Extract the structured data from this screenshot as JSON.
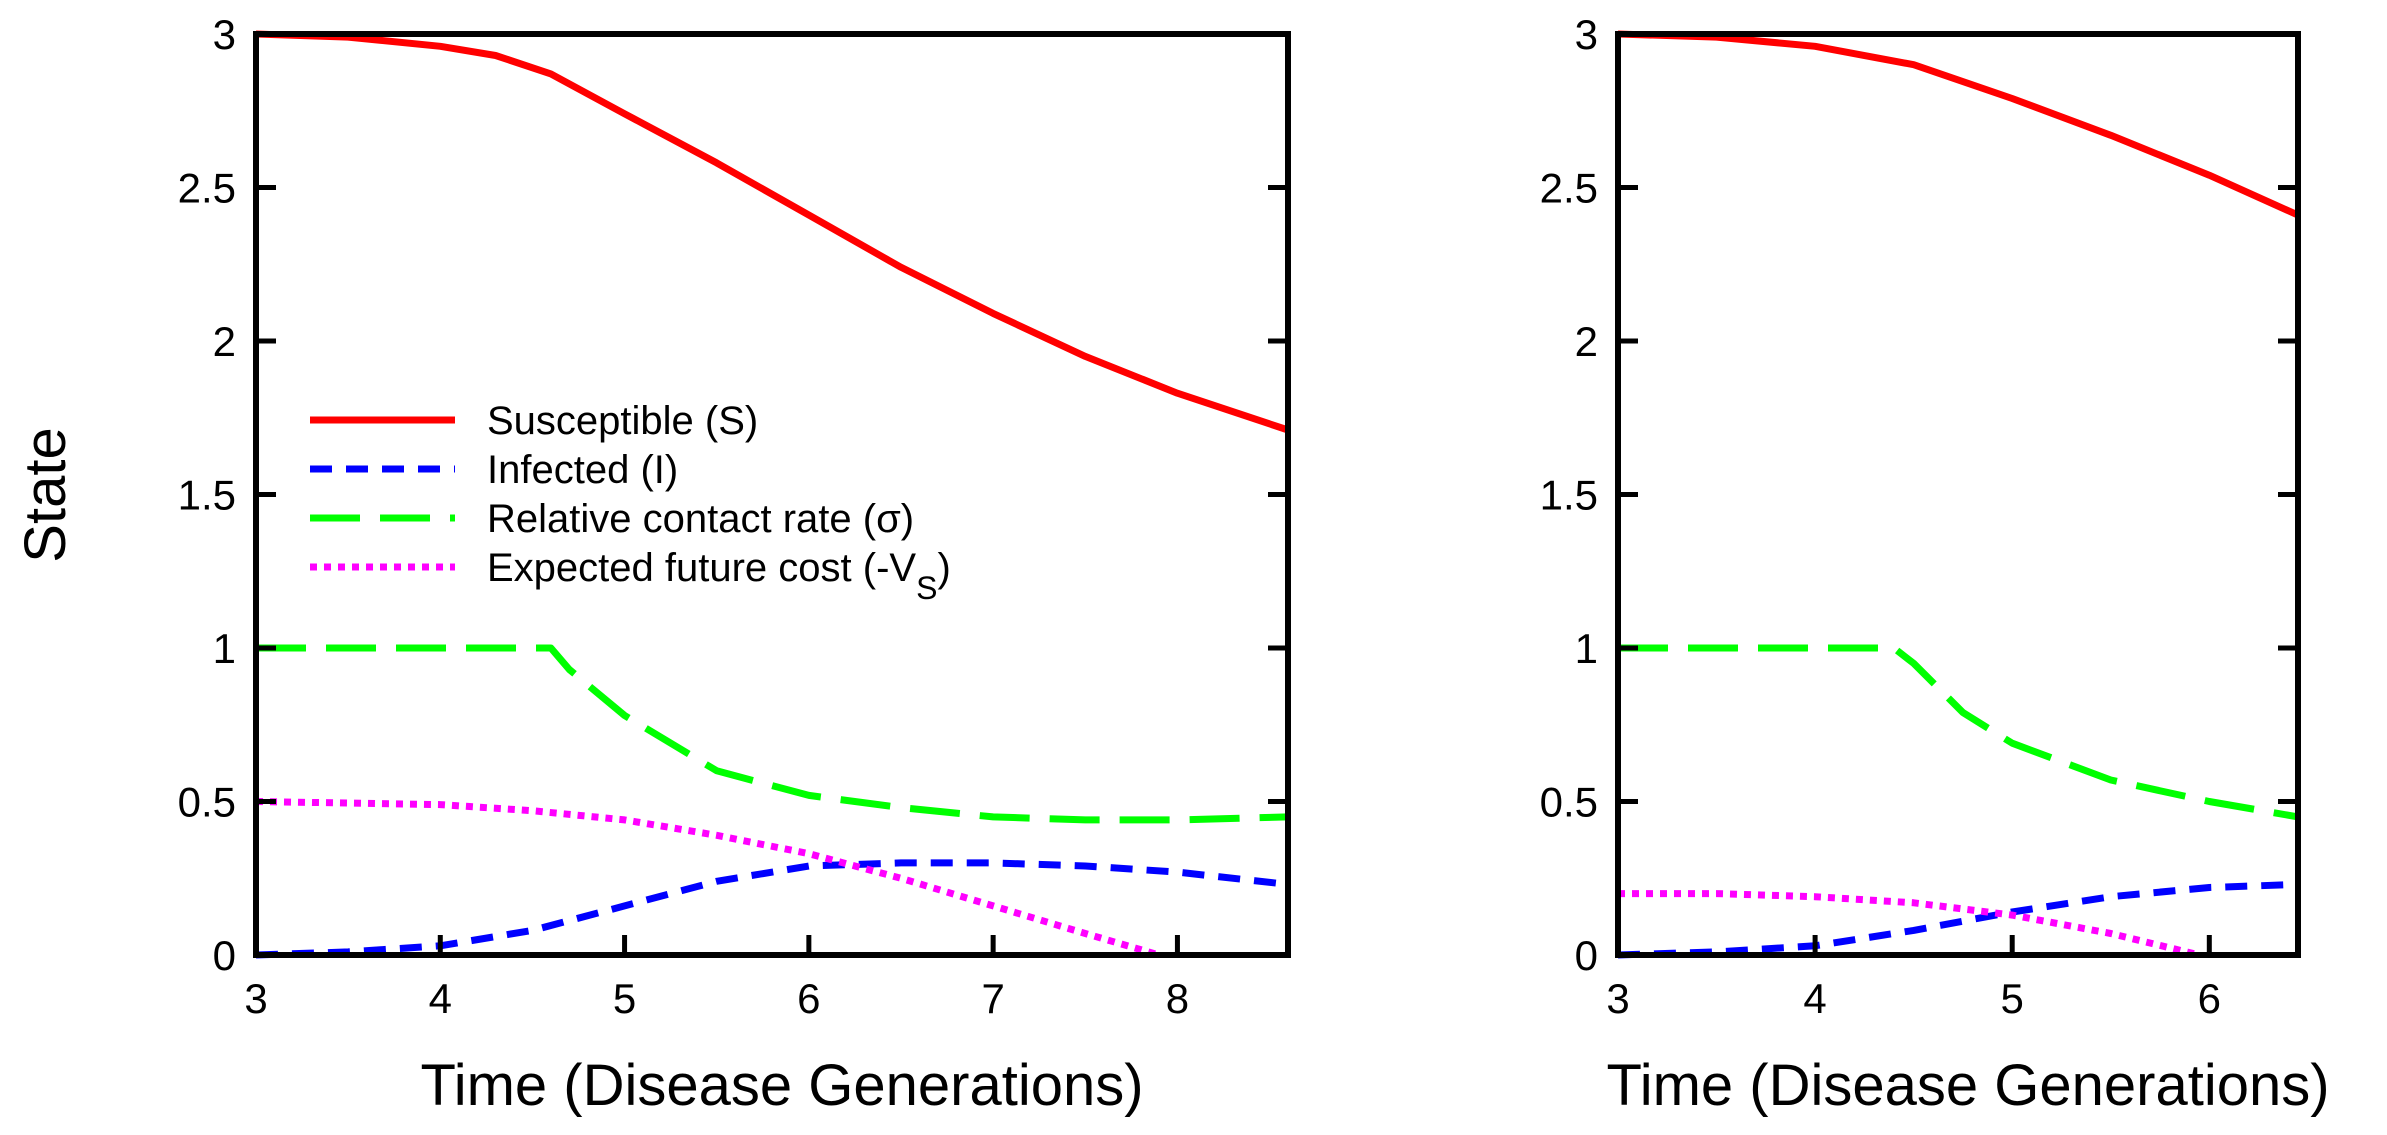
{
  "figure": {
    "ylabel": "State",
    "xlabel": "Time (Disease Generations)"
  },
  "legend": {
    "position": "left-center of first panel",
    "entries": [
      {
        "key": "S",
        "label": "Susceptible (S)",
        "color": "#ff0000",
        "style": "solid"
      },
      {
        "key": "I",
        "label": "Infected (I)",
        "color": "#0000ff",
        "style": "short-dash"
      },
      {
        "key": "sigma",
        "label": "Relative contact rate (σ)",
        "color": "#00ff00",
        "style": "long-dash"
      },
      {
        "key": "VS",
        "label": "Expected future cost (-V",
        "sub": "S",
        "close": ")",
        "color": "#ff00ff",
        "style": "dotted"
      }
    ]
  },
  "chart_data": [
    {
      "type": "line",
      "xlabel": "Time (Disease Generations)",
      "ylabel": "State",
      "xlim": [
        3,
        8.6
      ],
      "ylim": [
        0,
        3
      ],
      "xticks": [
        3,
        4,
        5,
        6,
        7,
        8
      ],
      "yticks": [
        0,
        0.5,
        1,
        1.5,
        2,
        2.5,
        3
      ],
      "ytick_labels": [
        "0",
        "0.5",
        "1",
        "1.5",
        "2",
        "2.5",
        "3"
      ],
      "series": [
        {
          "name": "Susceptible (S)",
          "key": "S",
          "x": [
            3,
            3.5,
            4,
            4.3,
            4.6,
            5,
            5.5,
            6,
            6.5,
            7,
            7.5,
            8,
            8.6
          ],
          "y": [
            3.0,
            2.99,
            2.96,
            2.93,
            2.87,
            2.74,
            2.58,
            2.41,
            2.24,
            2.09,
            1.95,
            1.83,
            1.71
          ]
        },
        {
          "name": "Infected (I)",
          "key": "I",
          "x": [
            3,
            3.5,
            4,
            4.5,
            5,
            5.5,
            6,
            6.5,
            7,
            7.5,
            8,
            8.6
          ],
          "y": [
            0.0,
            0.01,
            0.03,
            0.08,
            0.16,
            0.24,
            0.29,
            0.3,
            0.3,
            0.29,
            0.27,
            0.23
          ]
        },
        {
          "name": "Relative contact rate (σ)",
          "key": "sigma",
          "x": [
            3,
            4.6,
            4.7,
            5,
            5.5,
            6,
            6.5,
            7,
            7.5,
            8,
            8.6
          ],
          "y": [
            1.0,
            1.0,
            0.93,
            0.78,
            0.6,
            0.52,
            0.48,
            0.45,
            0.44,
            0.44,
            0.45
          ]
        },
        {
          "name": "Expected future cost (-VS)",
          "key": "VS",
          "x": [
            3,
            4,
            4.5,
            5,
            5.5,
            6,
            6.5,
            7,
            7.5,
            7.9
          ],
          "y": [
            0.5,
            0.49,
            0.47,
            0.44,
            0.39,
            0.33,
            0.25,
            0.16,
            0.07,
            0.0
          ]
        }
      ]
    },
    {
      "type": "line",
      "xlabel": "Time (Disease Generations)",
      "ylabel": "",
      "xlim": [
        3,
        6.45
      ],
      "ylim": [
        0,
        3
      ],
      "xticks": [
        3,
        4,
        5,
        6
      ],
      "yticks": [
        0,
        0.5,
        1,
        1.5,
        2,
        2.5,
        3
      ],
      "ytick_labels": [
        "0",
        "0.5",
        "1",
        "1.5",
        "2",
        "2.5",
        "3"
      ],
      "series": [
        {
          "name": "Susceptible (S)",
          "key": "S",
          "x": [
            3,
            3.5,
            4,
            4.5,
            5,
            5.5,
            6,
            6.45
          ],
          "y": [
            3.0,
            2.99,
            2.96,
            2.9,
            2.79,
            2.67,
            2.54,
            2.41
          ]
        },
        {
          "name": "Infected (I)",
          "key": "I",
          "x": [
            3,
            3.5,
            4,
            4.5,
            5,
            5.5,
            6,
            6.45
          ],
          "y": [
            0.0,
            0.01,
            0.03,
            0.08,
            0.14,
            0.19,
            0.22,
            0.23
          ]
        },
        {
          "name": "Relative contact rate (σ)",
          "key": "sigma",
          "x": [
            3,
            4.4,
            4.5,
            4.75,
            5,
            5.5,
            6,
            6.45
          ],
          "y": [
            1.0,
            1.0,
            0.95,
            0.79,
            0.69,
            0.57,
            0.5,
            0.45
          ]
        },
        {
          "name": "Expected future cost (-VS)",
          "key": "VS",
          "x": [
            3,
            3.5,
            4,
            4.5,
            5,
            5.5,
            5.95
          ],
          "y": [
            0.2,
            0.2,
            0.19,
            0.17,
            0.13,
            0.07,
            0.0
          ]
        }
      ]
    }
  ]
}
